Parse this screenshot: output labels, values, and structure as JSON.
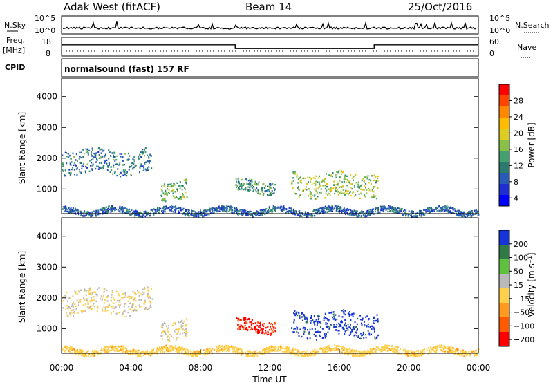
{
  "header": {
    "station": "Adak West (fitACF)",
    "beam": "Beam 14",
    "date": "25/Oct/2016"
  },
  "top_panels": {
    "nsky_label": "N.Sky",
    "nsky_ticks": [
      "10^5",
      "10^0"
    ],
    "nsearch_label": "N.Search",
    "nsearch_ticks": [
      "10^5",
      "10^0"
    ],
    "freq_label": "Freq.",
    "freq_unit": "[MHz]",
    "freq_ticks": [
      "18",
      "8"
    ],
    "nave_label": "Nave",
    "nave_ticks": [
      "60",
      "0"
    ],
    "cpid_label": "CPID",
    "cpid_text": "normalsound (fast) 157 RF"
  },
  "axes": {
    "xlabel": "Time UT",
    "xticks": [
      "00:00",
      "04:00",
      "08:00",
      "12:00",
      "16:00",
      "20:00",
      "00:00"
    ],
    "ylabel": "Slant Range [km]",
    "yticks": [
      "4000",
      "3000",
      "2000",
      "1000"
    ]
  },
  "colorbars": {
    "power": {
      "label": "Power [dB]",
      "ticks": [
        "28",
        "24",
        "20",
        "16",
        "12",
        "8",
        "4"
      ],
      "colors": [
        "#ff0000",
        "#ff4400",
        "#ff8800",
        "#ffbb00",
        "#ddcc22",
        "#88c048",
        "#44a070",
        "#2c7a6e",
        "#285ab8",
        "#1e2ed0",
        "#0000ff"
      ]
    },
    "velocity": {
      "label": "Velocity [m s⁻¹]",
      "ticks": [
        "200",
        "100",
        "50",
        "15",
        "−15",
        "−50",
        "−100",
        "−200"
      ],
      "colors": [
        "#1533d6",
        "#2f7a46",
        "#5fbf3f",
        "#b9b9b9",
        "#ffd04a",
        "#ff9a1e",
        "#ff5a00",
        "#ff0000"
      ]
    }
  },
  "chart_data": [
    {
      "type": "heatmap",
      "title": "Power",
      "xlabel": "Time UT",
      "ylabel": "Slant Range [km]",
      "xlim": [
        0,
        24
      ],
      "ylim": [
        200,
        4600
      ],
      "colorbar_label": "Power [dB]",
      "colorbar_range": [
        0,
        32
      ],
      "echo_regions": [
        {
          "t_start": 0.0,
          "t_end": 5.2,
          "range_min": 1500,
          "range_max": 2300,
          "value": 10
        },
        {
          "t_start": 5.7,
          "t_end": 7.2,
          "range_min": 700,
          "range_max": 1300,
          "value": 14
        },
        {
          "t_start": 10.0,
          "t_end": 12.3,
          "range_min": 900,
          "range_max": 1300,
          "value": 12
        },
        {
          "t_start": 13.2,
          "t_end": 18.2,
          "range_min": 750,
          "range_max": 1550,
          "value": 16
        },
        {
          "t_start": 0.0,
          "t_end": 24.0,
          "range_min": 200,
          "range_max": 400,
          "value": 8
        }
      ]
    },
    {
      "type": "heatmap",
      "title": "Velocity",
      "xlabel": "Time UT",
      "ylabel": "Slant Range [km]",
      "xlim": [
        0,
        24
      ],
      "ylim": [
        200,
        4600
      ],
      "colorbar_label": "Velocity [m s⁻¹]",
      "colorbar_range": [
        -240,
        240
      ],
      "echo_regions": [
        {
          "t_start": 0.0,
          "t_end": 5.2,
          "range_min": 1500,
          "range_max": 2300,
          "value": 0
        },
        {
          "t_start": 5.7,
          "t_end": 7.2,
          "range_min": 700,
          "range_max": 1300,
          "value": 0
        },
        {
          "t_start": 10.0,
          "t_end": 12.3,
          "range_min": 900,
          "range_max": 1300,
          "value": -200
        },
        {
          "t_start": 13.2,
          "t_end": 18.2,
          "range_min": 750,
          "range_max": 1550,
          "value": 200
        },
        {
          "t_start": 0.0,
          "t_end": 24.0,
          "range_min": 200,
          "range_max": 400,
          "value": -40
        }
      ]
    },
    {
      "type": "line",
      "title": "Freq.",
      "ylim": [
        8,
        18
      ],
      "x": [
        0,
        10,
        10,
        18,
        18,
        24
      ],
      "y": [
        14,
        14,
        12,
        12,
        14,
        14
      ]
    }
  ]
}
